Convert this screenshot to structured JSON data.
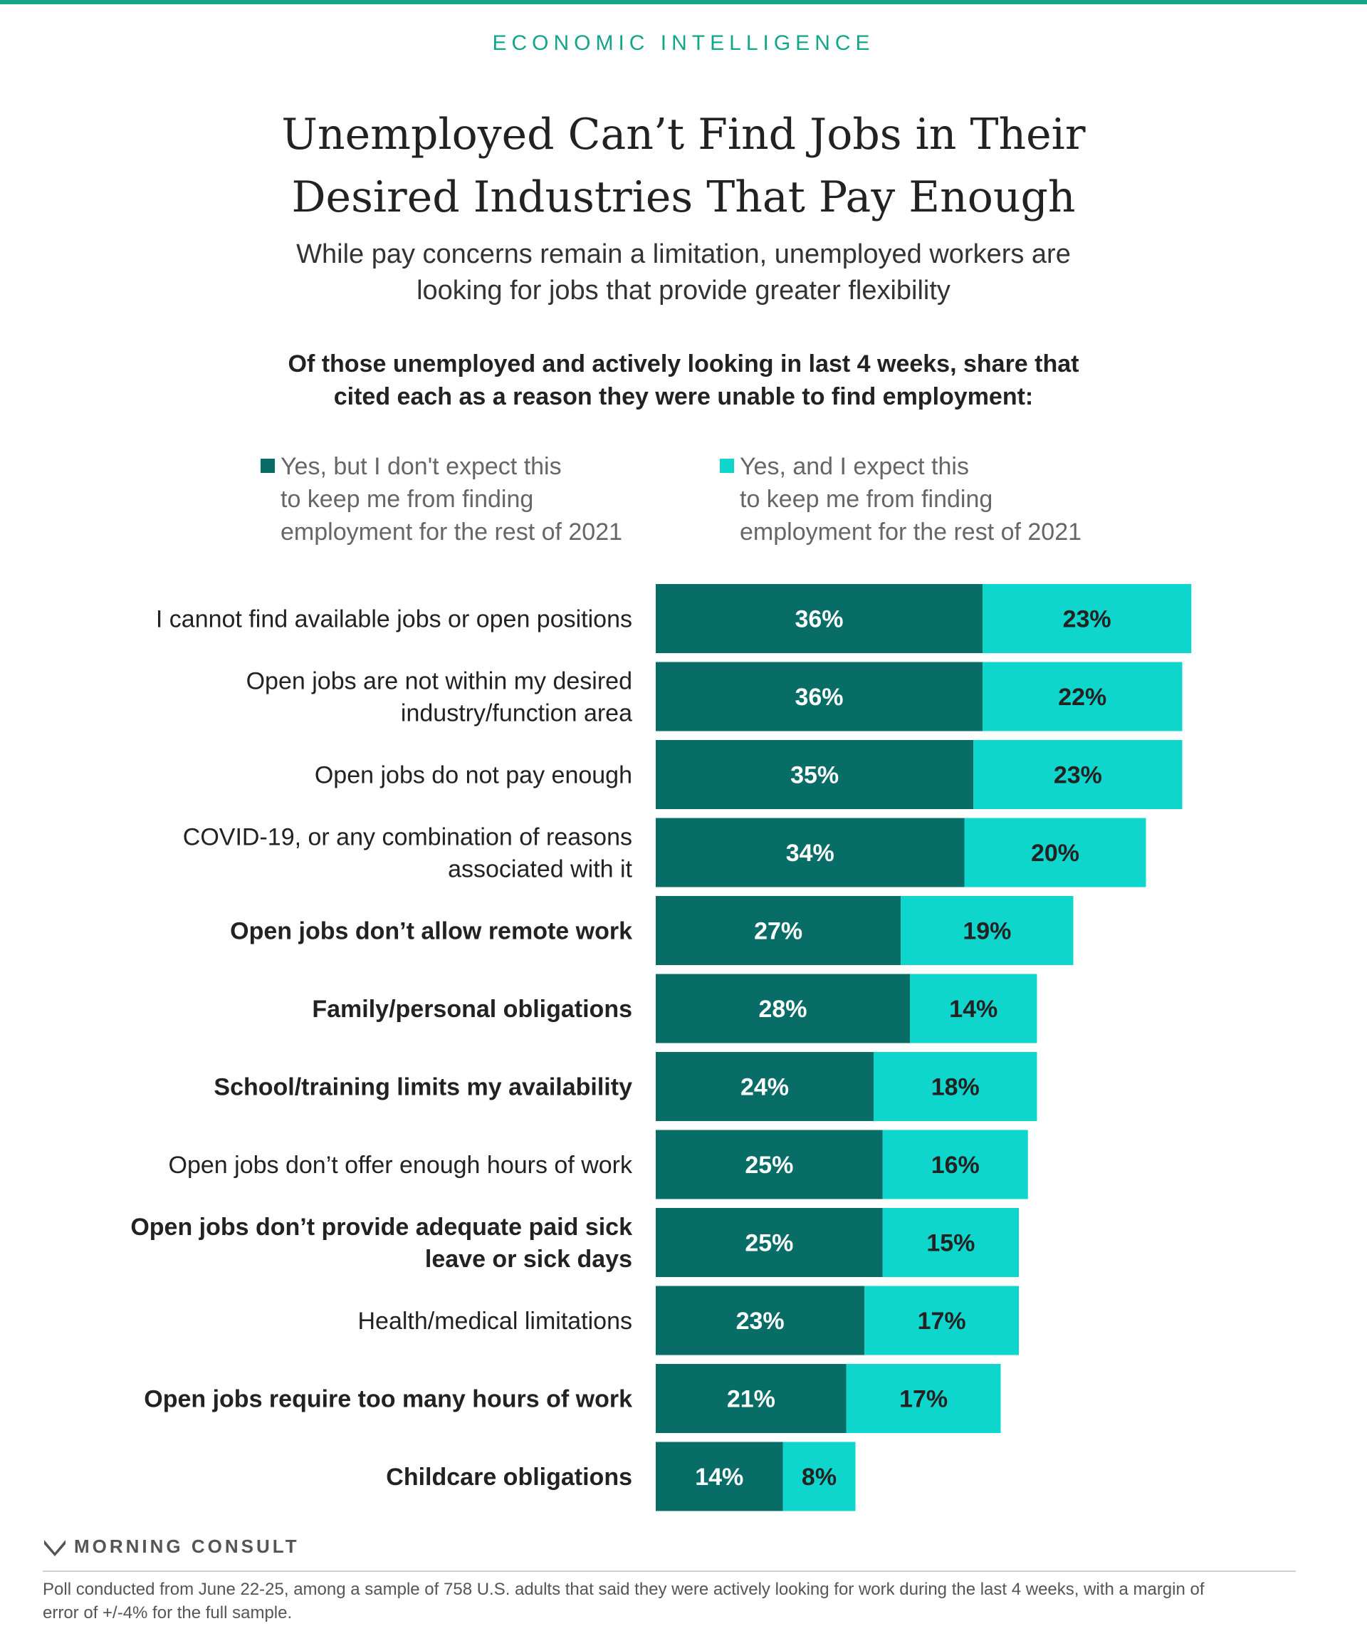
{
  "header": {
    "kicker": "ECONOMIC INTELLIGENCE",
    "title_lines": [
      "Unemployed Can’t Find Jobs in Their",
      "Desired Industries That Pay Enough"
    ],
    "subtitle_lines": [
      "While pay concerns remain a limitation, unemployed workers are",
      "looking for jobs that provide greater flexibility"
    ],
    "question_lines": [
      "Of those unemployed and actively looking in last 4 weeks, share that",
      "cited each as a reason they were unable to find employment:"
    ]
  },
  "colors": {
    "accent": "#13a58a",
    "dark_series": "#086d66",
    "light_series": "#0fd6cc",
    "logo": "#555555"
  },
  "chart_data": {
    "type": "bar",
    "orientation": "horizontal",
    "stacked": true,
    "categories": [
      "I cannot find available jobs or open positions",
      "Open jobs are not within my desired industry/function area",
      "Open jobs do not pay enough",
      "COVID-19, or any combination of reasons associated with it",
      "Open jobs don’t allow remote work",
      "Family/personal obligations",
      "School/training limits my availability",
      "Open jobs don’t offer enough hours of work",
      "Open jobs don’t provide adequate paid sick leave or sick days",
      "Health/medical limitations",
      "Open jobs require too many hours of work",
      "Childcare obligations"
    ],
    "category_lines": [
      [
        "I cannot find available jobs or open positions"
      ],
      [
        "Open jobs are not within my desired",
        "industry/function area"
      ],
      [
        "Open jobs do not pay enough"
      ],
      [
        "COVID-19, or any combination of reasons",
        "associated with it"
      ],
      [
        "Open jobs don’t allow remote work"
      ],
      [
        "Family/personal obligations"
      ],
      [
        "School/training limits my availability"
      ],
      [
        "Open jobs don’t offer enough hours of work"
      ],
      [
        "Open jobs don’t provide adequate paid sick",
        "leave or sick days"
      ],
      [
        "Health/medical limitations"
      ],
      [
        "Open jobs require too many hours of work"
      ],
      [
        "Childcare obligations"
      ]
    ],
    "category_bold": [
      false,
      false,
      false,
      false,
      true,
      true,
      true,
      false,
      true,
      false,
      true,
      true
    ],
    "series": [
      {
        "name": "Yes, but I don't expect this to keep me from finding employment for the rest of 2021",
        "legend_lines": [
          "Yes, but I don't expect this",
          "to keep me from finding",
          "employment for the rest of 2021"
        ],
        "values": [
          36,
          36,
          35,
          34,
          27,
          28,
          24,
          25,
          25,
          23,
          21,
          14
        ],
        "labels": [
          "36%",
          "36%",
          "35%",
          "34%",
          "27%",
          "28%",
          "24%",
          "25%",
          "25%",
          "23%",
          "21%",
          "14%"
        ]
      },
      {
        "name": "Yes, and I expect this to keep me from finding employment for the rest of 2021",
        "legend_lines": [
          "Yes, and I expect this",
          "to keep me from finding",
          "employment for the rest of 2021"
        ],
        "values": [
          23,
          22,
          23,
          20,
          19,
          14,
          18,
          16,
          15,
          17,
          17,
          8
        ],
        "labels": [
          "23%",
          "22%",
          "23%",
          "20%",
          "19%",
          "14%",
          "18%",
          "16%",
          "15%",
          "17%",
          "17%",
          "8%"
        ]
      }
    ],
    "xlim": [
      0,
      60
    ],
    "grid": false,
    "legend_position": "top"
  },
  "footer": {
    "logo_text": "MORNING CONSULT",
    "note_lines": [
      "Poll conducted from June 22-25, among a sample of 758 U.S. adults that said they were actively looking for work during the last 4 weeks, with a margin of",
      "error of +/-4% for the full sample."
    ]
  }
}
